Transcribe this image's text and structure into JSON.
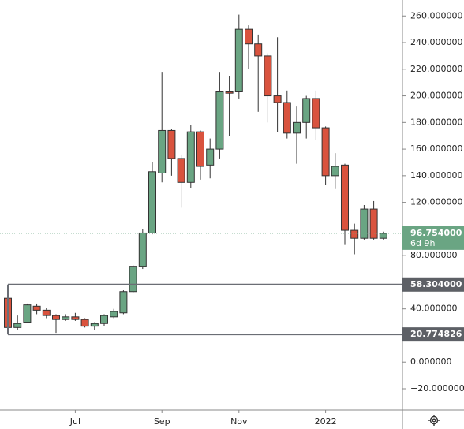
{
  "chart_data": {
    "type": "candlestick",
    "categories": [
      null,
      null,
      null,
      null,
      null,
      null,
      null,
      "Jul",
      null,
      null,
      null,
      null,
      null,
      null,
      null,
      null,
      "Sep",
      null,
      null,
      null,
      null,
      null,
      null,
      null,
      "Nov",
      null,
      null,
      null,
      null,
      null,
      null,
      null,
      null,
      "2022",
      null,
      null,
      null,
      null,
      null,
      null
    ],
    "open": [
      48,
      26,
      30,
      42,
      39,
      35,
      32,
      34,
      32,
      27,
      29,
      34,
      37,
      53,
      72,
      97,
      142,
      174,
      153,
      135,
      173,
      148,
      160,
      203,
      203,
      250,
      239,
      230,
      200,
      195,
      172,
      180,
      198,
      176,
      140,
      148,
      99,
      93,
      115,
      93
    ],
    "high": [
      49,
      35,
      44,
      44,
      41,
      36,
      36,
      37,
      33,
      30,
      36,
      40,
      54,
      73,
      100,
      150,
      218,
      175,
      156,
      178,
      174,
      168,
      218,
      215,
      261,
      253,
      246,
      232,
      244,
      204,
      192,
      200,
      204,
      177,
      157,
      149,
      104,
      118,
      121,
      98
    ],
    "low": [
      24,
      24,
      30,
      36,
      33,
      22,
      31,
      31,
      26,
      24,
      27,
      33,
      36,
      52,
      70,
      96,
      135,
      140,
      116,
      131,
      137,
      138,
      153,
      170,
      198,
      220,
      188,
      180,
      173,
      168,
      149,
      168,
      167,
      133,
      130,
      88,
      81,
      92,
      92,
      92
    ],
    "close": [
      26,
      29,
      43,
      39,
      35,
      32,
      34,
      32,
      27,
      29,
      35,
      38,
      53,
      72,
      97,
      143,
      174,
      153,
      135,
      173,
      147,
      160,
      203,
      202,
      250,
      239,
      230,
      200,
      195,
      172,
      180,
      198,
      176,
      140,
      147,
      99,
      93,
      115,
      93,
      96.754
    ],
    "up_color": "#6aa583",
    "down_color": "#d9533e",
    "ylim": [
      -36,
      272
    ],
    "yticks": [
      {
        "value": -20,
        "label": "−20.000000"
      },
      {
        "value": 0,
        "label": "0.000000"
      },
      {
        "value": 40,
        "label": "40.000000"
      },
      {
        "value": 80,
        "label": "80.000000"
      },
      {
        "value": 120,
        "label": "120.000000"
      },
      {
        "value": 140,
        "label": "140.000000"
      },
      {
        "value": 160,
        "label": "160.000000"
      },
      {
        "value": 180,
        "label": "180.000000"
      },
      {
        "value": 200,
        "label": "200.000000"
      },
      {
        "value": 220,
        "label": "220.000000"
      },
      {
        "value": 240,
        "label": "240.000000"
      },
      {
        "value": 260,
        "label": "260.000000"
      }
    ],
    "levels": [
      {
        "value": 58.304,
        "label": "58.304000"
      },
      {
        "value": 20.774826,
        "label": "20.774826"
      }
    ],
    "last": {
      "value": 96.754,
      "label": "96.754000",
      "countdown": "6d 9h"
    }
  }
}
